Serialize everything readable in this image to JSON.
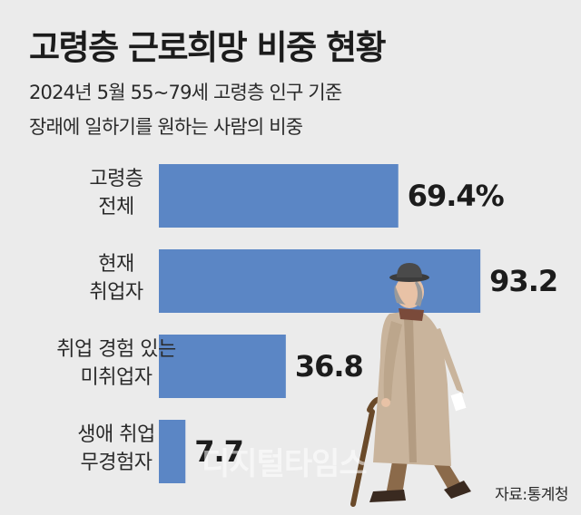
{
  "title": "고령층 근로희망 비중 현황",
  "subtitle_lines": [
    "2024년 5월 55~79세 고령층 인구 기준",
    "장래에 일하기를 원하는 사람의 비중"
  ],
  "source": "자료:통계청",
  "watermark": "디지털타임스",
  "colors": {
    "bar": "#5b86c5",
    "background": "#ebebeb"
  },
  "illustration": "elderly-man-with-cane-icon",
  "chart_data": {
    "type": "bar",
    "orientation": "horizontal",
    "categories": [
      [
        "고령층",
        "전체"
      ],
      [
        "현재",
        "취업자"
      ],
      [
        "취업 경험 있는",
        "미취업자"
      ],
      [
        "생애 취업",
        "무경험자"
      ]
    ],
    "values": [
      69.4,
      93.2,
      36.8,
      7.7
    ],
    "value_labels": [
      "69.4%",
      "93.2",
      "36.8",
      "7.7"
    ],
    "xlim": [
      0,
      100
    ],
    "grid": false,
    "legend": "none"
  }
}
